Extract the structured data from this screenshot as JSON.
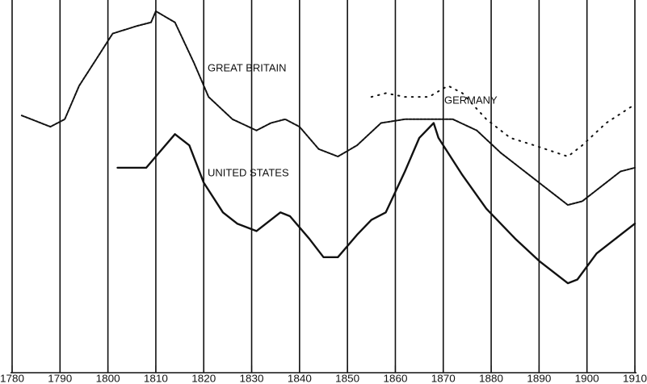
{
  "chart_data": {
    "type": "line",
    "xlim": [
      1780,
      1910
    ],
    "xticks": [
      1780,
      1790,
      1800,
      1810,
      1820,
      1830,
      1840,
      1850,
      1860,
      1870,
      1880,
      1890,
      1900,
      1910
    ],
    "ylim": [
      0,
      100
    ],
    "grid": "vertical",
    "series": [
      {
        "name": "GREAT BRITAIN",
        "color": "#111111",
        "line_style": "dashed",
        "x": [
          1782,
          1784,
          1788,
          1791,
          1794,
          1798,
          1801,
          1806,
          1809,
          1810,
          1814,
          1818,
          1821,
          1826,
          1831,
          1834,
          1837,
          1840,
          1844,
          1848,
          1852,
          1857,
          1862,
          1867,
          1872,
          1877,
          1882,
          1889,
          1896,
          1899,
          1903,
          1907,
          1910
        ],
        "values": [
          69,
          68,
          66,
          68,
          77,
          85,
          91,
          93,
          94,
          97,
          94,
          83,
          74,
          68,
          65,
          67,
          68,
          66,
          60,
          58,
          61,
          67,
          68,
          68,
          68,
          65,
          59,
          52,
          45,
          46,
          50,
          54,
          55
        ]
      },
      {
        "name": "GERMANY",
        "color": "#111111",
        "line_style": "dotted",
        "x": [
          1855,
          1858,
          1862,
          1867,
          1871,
          1874,
          1879,
          1884,
          1889,
          1896,
          1899,
          1904,
          1910
        ],
        "values": [
          74,
          75,
          74,
          74,
          77,
          75,
          68,
          63,
          61,
          58,
          61,
          67,
          72
        ]
      },
      {
        "name": "UNITED STATES",
        "color": "#111111",
        "line_style": "solid",
        "x": [
          1802,
          1805,
          1808,
          1810,
          1814,
          1817,
          1820,
          1824,
          1827,
          1831,
          1836,
          1838,
          1842,
          1845,
          1848,
          1852,
          1855,
          1858,
          1862,
          1865,
          1868,
          1869,
          1874,
          1879,
          1885,
          1890,
          1896,
          1898,
          1902,
          1907,
          1910
        ],
        "values": [
          55,
          55,
          55,
          58,
          64,
          61,
          51,
          43,
          40,
          38,
          43,
          42,
          36,
          31,
          31,
          37,
          41,
          43,
          54,
          63,
          67,
          63,
          53,
          44,
          36,
          30,
          24,
          25,
          32,
          37,
          40
        ]
      }
    ]
  }
}
